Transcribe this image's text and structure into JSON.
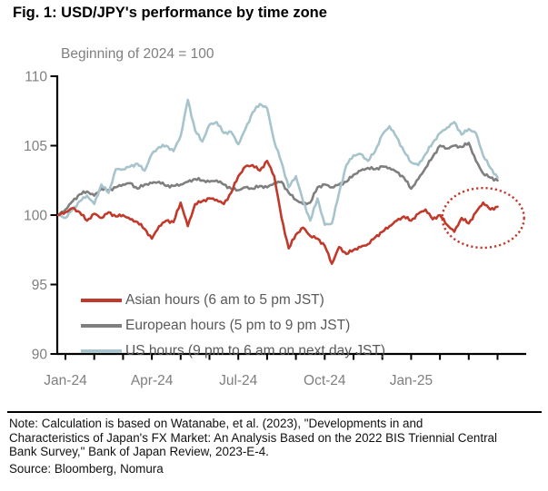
{
  "figure": {
    "title": "Fig. 1: USD/JPY's performance by time zone",
    "subtitle": "Beginning of 2024 = 100"
  },
  "chart_data": {
    "type": "line",
    "title": "Fig. 1: USD/JPY's performance by time zone",
    "subtitle": "Beginning of 2024 = 100",
    "x_unit": "months since Jan-2024 tick (0 = Jan-24, 12 = Jan-25)",
    "x_start": -0.25,
    "x_step": 0.25,
    "ylim": [
      90,
      110
    ],
    "y_ticks": [
      90,
      95,
      100,
      105,
      110
    ],
    "x_minor_tick_months": [
      0,
      1,
      2,
      3,
      4,
      5,
      6,
      7,
      8,
      9,
      10,
      11,
      12,
      13,
      14,
      15
    ],
    "x_tick_labels": [
      "Jan-24",
      "Apr-24",
      "Jul-24",
      "Oct-24",
      "Jan-25"
    ],
    "x_tick_label_months": [
      0,
      3,
      6,
      9,
      12
    ],
    "grid": false,
    "legend_position": "inside-bottom-left",
    "series": [
      {
        "id": "asian",
        "name": "Asian hours (6 am to 5 pm JST)",
        "color": "#c0392b",
        "values": [
          100.0,
          100.2,
          100.5,
          100.2,
          99.6,
          100.1,
          99.8,
          100.2,
          99.9,
          100.0,
          99.7,
          99.5,
          99.0,
          98.3,
          99.2,
          99.6,
          99.5,
          100.9,
          99.2,
          100.8,
          101.0,
          101.2,
          101.1,
          100.8,
          101.6,
          102.8,
          103.5,
          103.6,
          103.2,
          103.9,
          102.8,
          99.8,
          97.6,
          98.6,
          99.1,
          98.5,
          98.3,
          97.8,
          96.5,
          97.7,
          97.2,
          97.5,
          97.7,
          97.9,
          98.4,
          98.8,
          99.2,
          99.6,
          99.9,
          99.6,
          100.1,
          100.4,
          99.7,
          100.0,
          99.3,
          98.8,
          99.8,
          99.4,
          100.2,
          100.9,
          100.4,
          100.6
        ]
      },
      {
        "id": "european",
        "name": "European hours (5 pm to 9 pm JST)",
        "color": "#7f7f7f",
        "values": [
          100.0,
          100.4,
          101.0,
          101.5,
          101.7,
          101.4,
          101.9,
          101.8,
          102.0,
          102.2,
          102.3,
          101.9,
          102.2,
          102.3,
          102.4,
          102.1,
          102.1,
          102.2,
          102.4,
          102.6,
          102.5,
          102.4,
          102.5,
          102.2,
          101.9,
          101.8,
          102.0,
          101.9,
          102.1,
          102.0,
          102.3,
          102.4,
          101.6,
          101.1,
          100.8,
          100.9,
          102.0,
          102.2,
          102.0,
          102.2,
          102.4,
          102.9,
          103.2,
          103.4,
          103.3,
          103.5,
          103.4,
          103.1,
          102.7,
          101.9,
          102.6,
          103.4,
          104.2,
          105.0,
          104.8,
          105.0,
          104.9,
          105.2,
          103.9,
          103.0,
          102.7,
          102.5
        ]
      },
      {
        "id": "us",
        "name": "US hours (9 pm to 6 am on next day JST)",
        "color": "#a7c4cd",
        "values": [
          100.0,
          99.8,
          100.4,
          101.0,
          101.4,
          100.8,
          102.2,
          101.6,
          103.3,
          103.3,
          103.5,
          103.7,
          103.2,
          104.4,
          104.9,
          105.0,
          104.6,
          105.7,
          108.3,
          106.1,
          105.3,
          106.5,
          106.7,
          105.9,
          106.0,
          105.1,
          106.2,
          107.4,
          108.0,
          107.7,
          105.3,
          103.8,
          102.0,
          102.8,
          101.0,
          99.6,
          101.2,
          99.3,
          99.4,
          101.6,
          103.6,
          104.3,
          104.4,
          103.9,
          104.6,
          105.8,
          106.4,
          105.6,
          104.6,
          103.8,
          103.6,
          104.4,
          105.2,
          105.9,
          106.3,
          106.7,
          105.8,
          106.2,
          105.9,
          104.3,
          103.4,
          102.7
        ]
      }
    ],
    "annotation": {
      "type": "dotted-ellipse",
      "center_month": 14.5,
      "center_value": 99.8,
      "rx_months": 1.42,
      "ry_values": 2.15,
      "color": "#c0392b"
    }
  },
  "notes": {
    "note": "Note: Calculation is based on Watanabe, et al. (2023), \"Developments in and Characteristics of Japan's FX Market: An Analysis Based on the 2022 BIS Triennial Central Bank Survey,\" Bank of Japan Review, 2023-E-4.",
    "source": "Source: Bloomberg, Nomura"
  }
}
